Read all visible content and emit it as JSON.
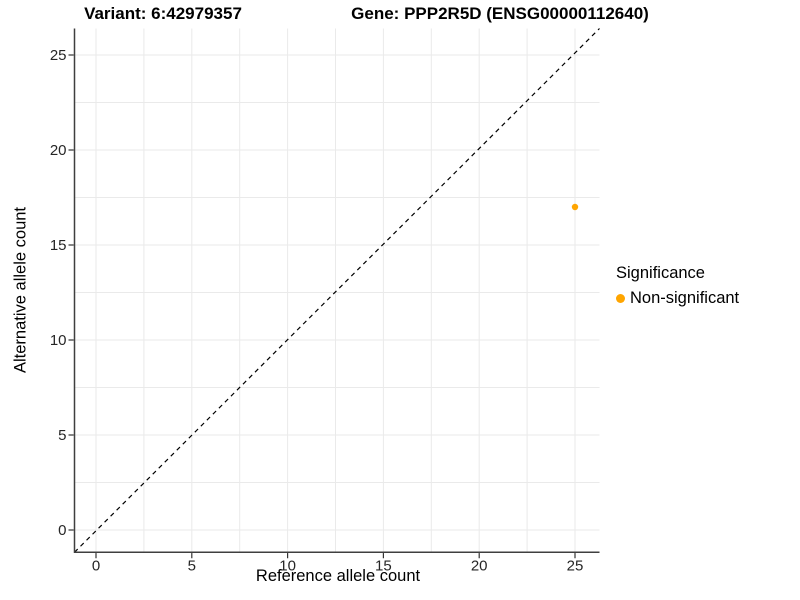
{
  "chart_data": {
    "type": "scatter",
    "title_left": "Variant: 6:42979357",
    "title_right": "Gene: PPP2R5D (ENSG00000112640)",
    "xlabel": "Reference allele count",
    "ylabel": "Alternative allele count",
    "x_ticks": [
      0,
      5,
      10,
      15,
      20,
      25
    ],
    "y_ticks": [
      0,
      5,
      10,
      15,
      20,
      25
    ],
    "xlim": [
      -1.1,
      26.3
    ],
    "ylim": [
      -1.15,
      26.35
    ],
    "grid_on": true,
    "grid_interval": 2.5,
    "grid_color": "#eaeaea",
    "axis_line_color": "#3f3f3f",
    "tick_color": "#333333",
    "tick_label_color": "#262626",
    "identity_line": {
      "slope": 1,
      "intercept": 0,
      "style": "dashed",
      "color": "#000000"
    },
    "series": [
      {
        "name": "Non-significant",
        "color": "#FFA500",
        "points": [
          {
            "x": 25,
            "y": 17
          }
        ]
      }
    ],
    "legend_title": "Significance",
    "legend_position": "right"
  }
}
